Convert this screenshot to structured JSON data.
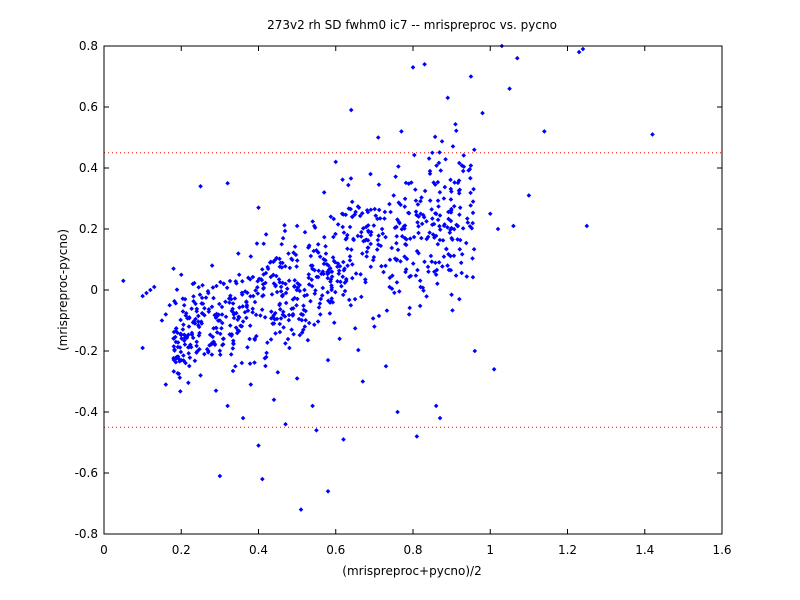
{
  "chart_data": {
    "type": "scatter",
    "title": "273v2 rh SD fwhm0 ic7 -- mrispreproc vs. pycno",
    "xlabel": "(mrispreproc+pycno)/2",
    "ylabel": "(mrispreproc-pycno)",
    "xlim": [
      0,
      1.6
    ],
    "ylim": [
      -0.8,
      0.8
    ],
    "xticks": [
      0,
      0.2,
      0.4,
      0.6,
      0.8,
      1,
      1.2,
      1.4,
      1.6
    ],
    "yticks": [
      -0.8,
      -0.6,
      -0.4,
      -0.2,
      0,
      0.2,
      0.4,
      0.6,
      0.8
    ],
    "xtick_labels": [
      "0",
      "0.2",
      "0.4",
      "0.6",
      "0.8",
      "1",
      "1.2",
      "1.4",
      "1.6"
    ],
    "ytick_labels": [
      "-0.8",
      "-0.6",
      "-0.4",
      "-0.2",
      "0",
      "0.2",
      "0.4",
      "0.6",
      "0.8"
    ],
    "grid": false,
    "marker_color": "#0000ff",
    "reference_lines": [
      {
        "y": 0.45,
        "color": "#ff0000",
        "style": "dotted"
      },
      {
        "y": -0.45,
        "color": "#ff0000",
        "style": "dotted"
      }
    ],
    "series": [
      {
        "points": [
          [
            0.05,
            0.03
          ],
          [
            0.1,
            -0.19
          ],
          [
            0.1,
            -0.02
          ],
          [
            0.11,
            -0.01
          ],
          [
            0.12,
            0.0
          ],
          [
            0.13,
            0.01
          ],
          [
            0.15,
            -0.1
          ],
          [
            0.16,
            -0.31
          ],
          [
            0.16,
            -0.08
          ],
          [
            0.17,
            -0.05
          ],
          [
            0.18,
            0.07
          ],
          [
            0.19,
            -0.14
          ],
          [
            0.2,
            -0.23
          ],
          [
            0.2,
            0.05
          ],
          [
            0.21,
            -0.03
          ],
          [
            0.22,
            -0.12
          ],
          [
            0.23,
            0.02
          ],
          [
            0.24,
            -0.17
          ],
          [
            0.25,
            0.34
          ],
          [
            0.25,
            -0.28
          ],
          [
            0.26,
            -0.06
          ],
          [
            0.27,
            -0.2
          ],
          [
            0.28,
            0.08
          ],
          [
            0.29,
            -0.33
          ],
          [
            0.3,
            -0.61
          ],
          [
            0.3,
            -0.1
          ],
          [
            0.31,
            0.02
          ],
          [
            0.32,
            -0.38
          ],
          [
            0.32,
            0.35
          ],
          [
            0.33,
            -0.15
          ],
          [
            0.34,
            -0.25
          ],
          [
            0.35,
            0.05
          ],
          [
            0.35,
            -0.09
          ],
          [
            0.36,
            -0.42
          ],
          [
            0.37,
            -0.05
          ],
          [
            0.38,
            -0.31
          ],
          [
            0.38,
            0.11
          ],
          [
            0.39,
            -0.16
          ],
          [
            0.4,
            -0.51
          ],
          [
            0.4,
            0.27
          ],
          [
            0.41,
            -0.62
          ],
          [
            0.41,
            -0.02
          ],
          [
            0.42,
            -0.22
          ],
          [
            0.43,
            0.09
          ],
          [
            0.44,
            -0.36
          ],
          [
            0.44,
            -0.11
          ],
          [
            0.45,
            -0.27
          ],
          [
            0.46,
            0.15
          ],
          [
            0.47,
            -0.44
          ],
          [
            0.47,
            0.02
          ],
          [
            0.48,
            -0.19
          ],
          [
            0.49,
            -0.06
          ],
          [
            0.5,
            -0.29
          ],
          [
            0.5,
            0.21
          ],
          [
            0.51,
            -0.72
          ],
          [
            0.52,
            -0.12
          ],
          [
            0.53,
            0.04
          ],
          [
            0.54,
            -0.38
          ],
          [
            0.55,
            0.13
          ],
          [
            0.55,
            -0.46
          ],
          [
            0.56,
            -0.08
          ],
          [
            0.57,
            0.32
          ],
          [
            0.58,
            -0.23
          ],
          [
            0.58,
            -0.66
          ],
          [
            0.59,
            0.06
          ],
          [
            0.6,
            0.42
          ],
          [
            0.61,
            -0.16
          ],
          [
            0.62,
            -0.49
          ],
          [
            0.63,
            0.18
          ],
          [
            0.64,
            0.59
          ],
          [
            0.65,
            -0.03
          ],
          [
            0.66,
            0.27
          ],
          [
            0.67,
            -0.3
          ],
          [
            0.68,
            0.11
          ],
          [
            0.69,
            0.38
          ],
          [
            0.7,
            -0.12
          ],
          [
            0.71,
            0.5
          ],
          [
            0.72,
            0.2
          ],
          [
            0.73,
            -0.25
          ],
          [
            0.74,
            0.04
          ],
          [
            0.75,
            0.31
          ],
          [
            0.76,
            -0.4
          ],
          [
            0.77,
            0.52
          ],
          [
            0.78,
            0.15
          ],
          [
            0.79,
            -0.08
          ],
          [
            0.8,
            0.73
          ],
          [
            0.81,
            -0.48
          ],
          [
            0.82,
            0.25
          ],
          [
            0.83,
            0.74
          ],
          [
            0.84,
            0.06
          ],
          [
            0.85,
            0.45
          ],
          [
            0.86,
            -0.38
          ],
          [
            0.87,
            -0.42
          ],
          [
            0.88,
            0.3
          ],
          [
            0.89,
            0.63
          ],
          [
            0.9,
            0.17
          ],
          [
            0.92,
            -0.03
          ],
          [
            0.93,
            0.39
          ],
          [
            0.95,
            0.7
          ],
          [
            0.96,
            -0.2
          ],
          [
            0.98,
            0.58
          ],
          [
            1.0,
            0.25
          ],
          [
            1.01,
            -0.26
          ],
          [
            1.02,
            0.2
          ],
          [
            1.03,
            0.8
          ],
          [
            1.05,
            0.66
          ],
          [
            1.06,
            0.21
          ],
          [
            1.07,
            0.76
          ],
          [
            1.1,
            0.31
          ],
          [
            1.14,
            0.52
          ],
          [
            1.23,
            0.78
          ],
          [
            1.24,
            0.79
          ],
          [
            1.25,
            0.21
          ],
          [
            1.42,
            0.51
          ]
        ]
      }
    ]
  }
}
